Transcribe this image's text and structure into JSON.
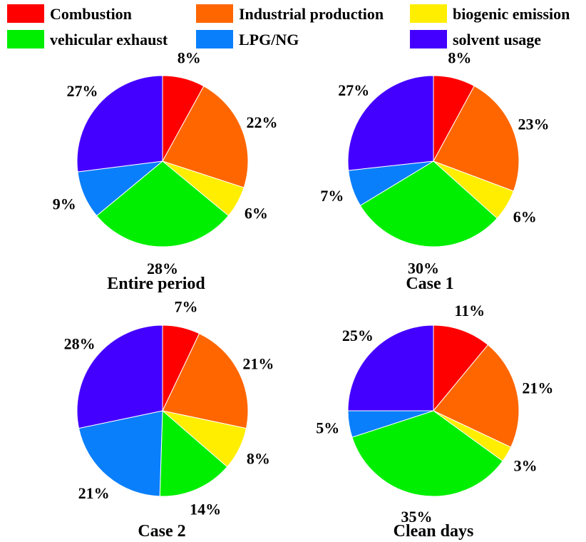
{
  "legend": [
    {
      "label": "Combustion",
      "color": "#ff0000"
    },
    {
      "label": "Industrial production",
      "color": "#ff6600"
    },
    {
      "label": "biogenic emission",
      "color": "#ffee00"
    },
    {
      "label": "vehicular exhaust",
      "color": "#00ee00"
    },
    {
      "label": "LPG/NG",
      "color": "#0a7ffb"
    },
    {
      "label": "solvent usage",
      "color": "#4400ff"
    }
  ],
  "chart_data": [
    {
      "type": "pie",
      "title": "Entire period",
      "categories": [
        "Combustion",
        "Industrial production",
        "biogenic emission",
        "vehicular exhaust",
        "LPG/NG",
        "solvent usage"
      ],
      "values": [
        8,
        22,
        6,
        28,
        9,
        27
      ],
      "labels": [
        "8%",
        "22%",
        "6%",
        "28%",
        "9%",
        "27%"
      ]
    },
    {
      "type": "pie",
      "title": "Case 1",
      "categories": [
        "Combustion",
        "Industrial production",
        "biogenic emission",
        "vehicular exhaust",
        "LPG/NG",
        "solvent usage"
      ],
      "values": [
        8,
        23,
        6,
        30,
        7,
        27
      ],
      "labels": [
        "8%",
        "23%",
        "6%",
        "30%",
        "7%",
        "27%"
      ]
    },
    {
      "type": "pie",
      "title": "Case 2",
      "categories": [
        "Combustion",
        "Industrial production",
        "biogenic emission",
        "vehicular exhaust",
        "LPG/NG",
        "solvent usage"
      ],
      "values": [
        7,
        21,
        8,
        14,
        21,
        28
      ],
      "labels": [
        "7%",
        "21%",
        "8%",
        "14%",
        "21%",
        "28%"
      ]
    },
    {
      "type": "pie",
      "title": "Clean days",
      "categories": [
        "Combustion",
        "Industrial production",
        "biogenic emission",
        "vehicular exhaust",
        "LPG/NG",
        "solvent usage"
      ],
      "values": [
        11,
        21,
        3,
        35,
        5,
        25
      ],
      "labels": [
        "11%",
        "21%",
        "3%",
        "35%",
        "5%",
        "25%"
      ]
    }
  ]
}
